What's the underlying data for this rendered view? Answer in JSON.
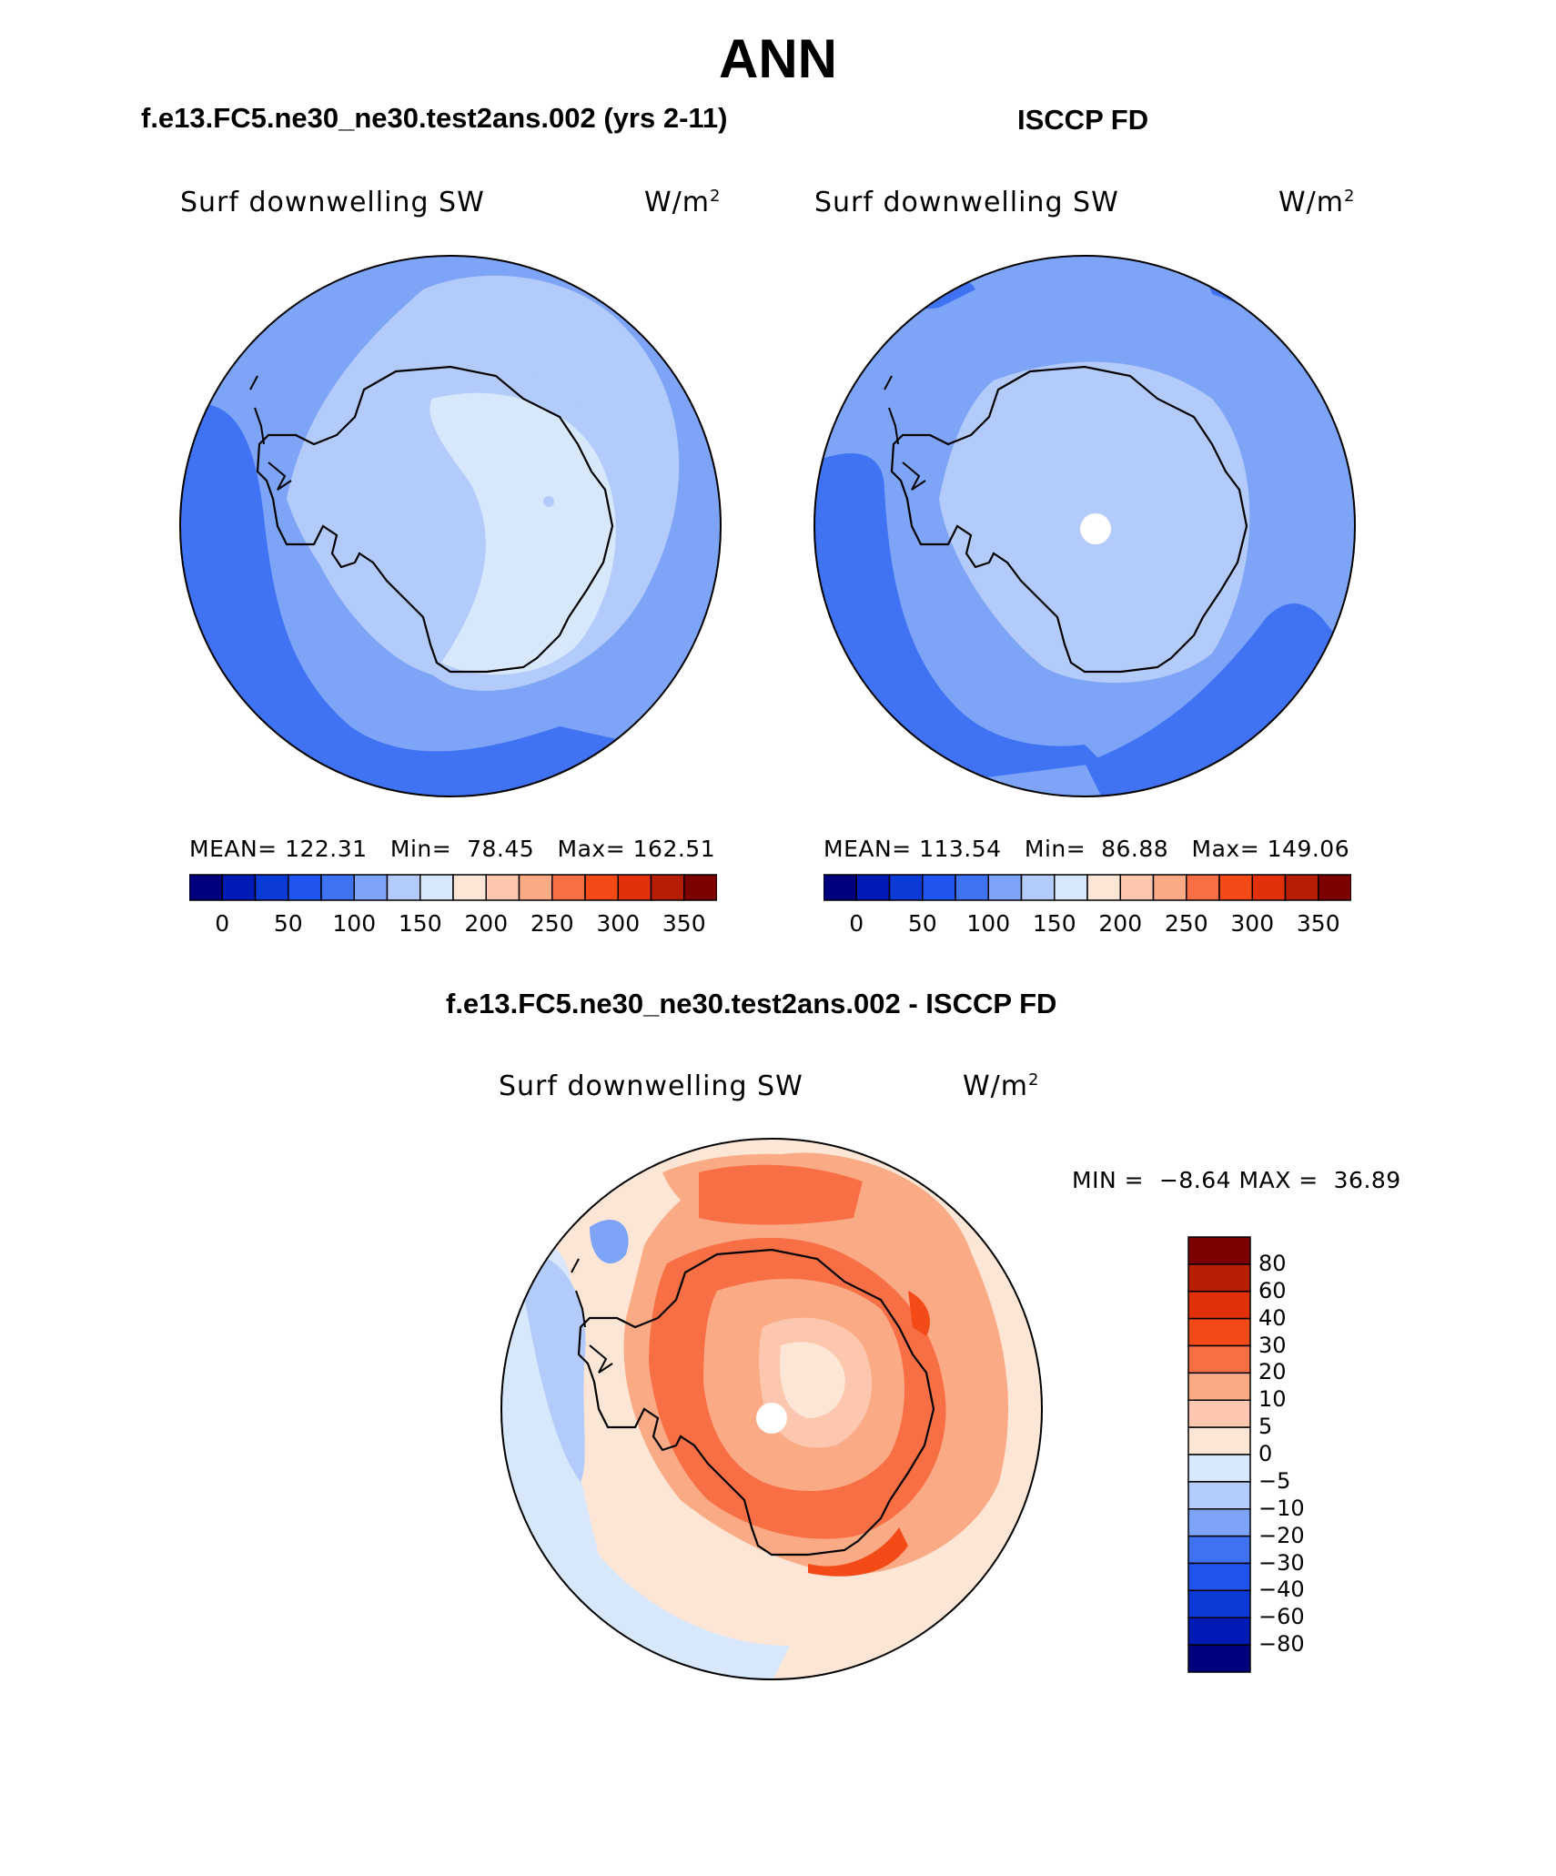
{
  "title": "ANN",
  "panels": {
    "model": {
      "title": "f.e13.FC5.ne30_ne30.test2ans.002 (yrs 2-11)",
      "variable": "Surf downwelling SW",
      "units_base": "W/m",
      "units_exp": "2",
      "stats": {
        "mean_label": "MEAN=",
        "mean": "122.31",
        "min_label": "Min=",
        "min": "78.45",
        "max_label": "Max=",
        "max": "162.51"
      }
    },
    "obs": {
      "title": "ISCCP FD",
      "variable": "Surf downwelling SW",
      "units_base": "W/m",
      "units_exp": "2",
      "stats": {
        "mean_label": "MEAN=",
        "mean": "113.54",
        "min_label": "Min=",
        "min": "86.88",
        "max_label": "Max=",
        "max": "149.06"
      }
    },
    "diff": {
      "title": "f.e13.FC5.ne30_ne30.test2ans.002 - ISCCP FD",
      "variable": "Surf downwelling SW",
      "units_base": "W/m",
      "units_exp": "2",
      "stats": {
        "min_label": "MIN =",
        "min": "−8.64",
        "max_label": "MAX =",
        "max": "36.89"
      }
    }
  },
  "colorbar_abs": {
    "colors": [
      "#00007f",
      "#001bb5",
      "#0b3bd6",
      "#1f55ee",
      "#3f73f3",
      "#7ea4f8",
      "#b3cbfb",
      "#d7e8fd",
      "#fde6d6",
      "#fcc7ae",
      "#fbaa86",
      "#f86f45",
      "#f44a17",
      "#e1300a",
      "#b51e02",
      "#7d0000"
    ],
    "labels": [
      "0",
      "50",
      "100",
      "150",
      "200",
      "250",
      "300",
      "350"
    ]
  },
  "colorbar_diff": {
    "colors": [
      "#7d0000",
      "#b51e02",
      "#e1300a",
      "#f44a17",
      "#f86f45",
      "#fbaa86",
      "#fcc7ae",
      "#fde6d6",
      "#d7e8fd",
      "#b3cbfb",
      "#7ea4f8",
      "#3f73f3",
      "#1f55ee",
      "#0b3bd6",
      "#001bb5",
      "#00007f"
    ],
    "labels": [
      "80",
      "60",
      "40",
      "30",
      "20",
      "10",
      "5",
      "0",
      "−5",
      "−10",
      "−20",
      "−30",
      "−40",
      "−60",
      "−80"
    ]
  }
}
